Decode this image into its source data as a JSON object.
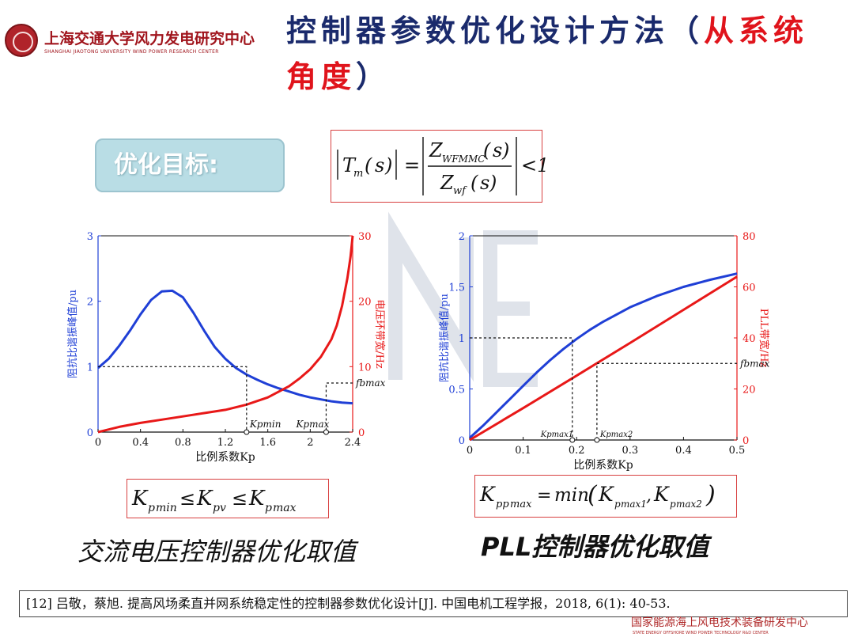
{
  "header": {
    "org_name": "上海交通大学风力发电研究中心",
    "org_name_en": "SHANGHAI JIAOTONG UNIVERSITY WIND POWER RESEARCH CENTER",
    "title_part1": "控制器参数优化设计方法（",
    "title_part2": "从系统角度",
    "title_part3": "）"
  },
  "goal_label": "优化目标:",
  "formulas": {
    "top": "|Tm(s)| = |Z_WFMMC(s) / Z_wf(s)| < 1",
    "left": "K_pmin ≤ K_pv ≤ K_pmax",
    "right": "K_ppmax = min(K_pmax1, K_pmax2)"
  },
  "captions": {
    "left": "交流电压控制器优化取值",
    "right": "PLL控制器优化取值"
  },
  "reference": "[12] 吕敬，蔡旭. 提高风场柔直并网系统稳定性的控制器参数优化设计[J]. 中国电机工程学报，2018, 6(1): 40-53.",
  "footer": {
    "cn": "国家能源海上风电技术装备研发中心",
    "en": "STATE ENERGY OFFSHORE WIND POWER TECHNOLOGY R&D CENTER"
  },
  "colors": {
    "blue": "#1f3fd6",
    "red": "#e81818",
    "title": "#1a2a6c",
    "accent": "#e0141c"
  },
  "chart_data": [
    {
      "type": "line",
      "xlabel": "比例系数Kp",
      "ylabel_left": "阻抗比谐振峰值/pu",
      "ylabel_right": "电压环带宽/Hz",
      "xlim": [
        0,
        2.4
      ],
      "ylim_left": [
        0,
        3
      ],
      "ylim_right": [
        0,
        30
      ],
      "xticks": [
        "0",
        "0.4",
        "0.8",
        "1.2",
        "1.6",
        "2",
        "2.4"
      ],
      "yticks_left": [
        "0",
        "1",
        "2",
        "3"
      ],
      "yticks_right": [
        "0",
        "10",
        "20",
        "30"
      ],
      "series": [
        {
          "axis": "left",
          "color": "#1f3fd6",
          "x": [
            0,
            0.1,
            0.2,
            0.3,
            0.4,
            0.5,
            0.6,
            0.7,
            0.8,
            0.9,
            1.0,
            1.1,
            1.2,
            1.3,
            1.4,
            1.5,
            1.6,
            1.7,
            1.8,
            1.9,
            2.0,
            2.1,
            2.2,
            2.3,
            2.4
          ],
          "y": [
            0.98,
            1.12,
            1.32,
            1.55,
            1.8,
            2.02,
            2.15,
            2.16,
            2.06,
            1.82,
            1.55,
            1.3,
            1.12,
            0.98,
            0.88,
            0.8,
            0.73,
            0.67,
            0.62,
            0.57,
            0.53,
            0.5,
            0.47,
            0.45,
            0.44
          ]
        },
        {
          "axis": "right",
          "color": "#e81818",
          "x": [
            0,
            0.2,
            0.4,
            0.6,
            0.8,
            1.0,
            1.2,
            1.4,
            1.6,
            1.8,
            1.9,
            2.0,
            2.1,
            2.2,
            2.25,
            2.3,
            2.35,
            2.38,
            2.4
          ],
          "y": [
            0,
            0.8,
            1.4,
            1.9,
            2.4,
            2.9,
            3.4,
            4.2,
            5.3,
            7.0,
            8.2,
            9.6,
            11.5,
            14.2,
            16.3,
            19.3,
            23.5,
            26.8,
            30
          ]
        }
      ],
      "annotations": [
        {
          "label": "Kpmin",
          "x": 1.4
        },
        {
          "label": "Kpmax",
          "x": 2.15
        },
        {
          "label": "fbmax",
          "value": 7.5,
          "axis": "right"
        }
      ]
    },
    {
      "type": "line",
      "xlabel": "比例系数Kp",
      "ylabel_left": "阻抗比谐振峰值/pu",
      "ylabel_right": "PLL带宽/Hz",
      "xlim": [
        0,
        0.5
      ],
      "ylim_left": [
        0,
        2
      ],
      "ylim_right": [
        0,
        80
      ],
      "xticks": [
        "0",
        "0.1",
        "0.2",
        "0.3",
        "0.4",
        "0.5"
      ],
      "yticks_left": [
        "0",
        "0.5",
        "1",
        "1.5",
        "2"
      ],
      "yticks_right": [
        "0",
        "20",
        "40",
        "60",
        "80"
      ],
      "series": [
        {
          "axis": "left",
          "color": "#1f3fd6",
          "x": [
            0,
            0.025,
            0.05,
            0.075,
            0.1,
            0.125,
            0.15,
            0.175,
            0.2,
            0.225,
            0.25,
            0.3,
            0.35,
            0.4,
            0.45,
            0.5
          ],
          "y": [
            0.02,
            0.14,
            0.27,
            0.4,
            0.53,
            0.66,
            0.78,
            0.89,
            0.99,
            1.08,
            1.16,
            1.3,
            1.41,
            1.5,
            1.57,
            1.63
          ]
        },
        {
          "axis": "right",
          "color": "#e81818",
          "x": [
            0,
            0.1,
            0.2,
            0.3,
            0.4,
            0.5
          ],
          "y": [
            0,
            12.5,
            25.2,
            38,
            51,
            64
          ]
        }
      ],
      "annotations": [
        {
          "label": "Kpmax1",
          "x": 0.192
        },
        {
          "label": "Kpmax2",
          "x": 0.238
        },
        {
          "label": "fbmax",
          "value": 30,
          "axis": "right"
        }
      ]
    }
  ]
}
